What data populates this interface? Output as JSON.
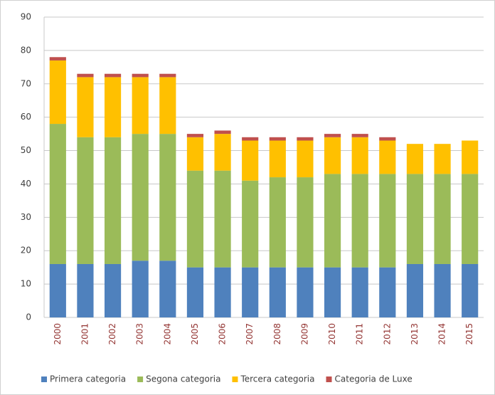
{
  "chart_data": {
    "type": "stacked_bar",
    "categories": [
      "2000",
      "2001",
      "2002",
      "2003",
      "2004",
      "2005",
      "2006",
      "2007",
      "2008",
      "2009",
      "2010",
      "2011",
      "2012",
      "2013",
      "2014",
      "2015"
    ],
    "series": [
      {
        "name": "Primera categoria",
        "color": "#4f81bd",
        "values": [
          16,
          16,
          16,
          17,
          17,
          15,
          15,
          15,
          15,
          15,
          15,
          15,
          15,
          16,
          16,
          16
        ]
      },
      {
        "name": "Segona categoria",
        "color": "#9bbb59",
        "values": [
          42,
          38,
          38,
          38,
          38,
          29,
          29,
          26,
          27,
          27,
          28,
          28,
          28,
          27,
          27,
          27
        ]
      },
      {
        "name": "Tercera categoria",
        "color": "#ffc000",
        "values": [
          19,
          18,
          18,
          17,
          17,
          10,
          11,
          12,
          11,
          11,
          11,
          11,
          10,
          9,
          9,
          10
        ]
      },
      {
        "name": "Categoria de Luxe",
        "color": "#c0504d",
        "values": [
          1,
          1,
          1,
          1,
          1,
          1,
          1,
          1,
          1,
          1,
          1,
          1,
          1,
          0,
          0,
          0
        ]
      }
    ],
    "ylim": [
      0,
      90
    ],
    "yticks": [
      0,
      10,
      20,
      30,
      40,
      50,
      60,
      70,
      80,
      90
    ],
    "grid": true,
    "legend": "bottom"
  }
}
